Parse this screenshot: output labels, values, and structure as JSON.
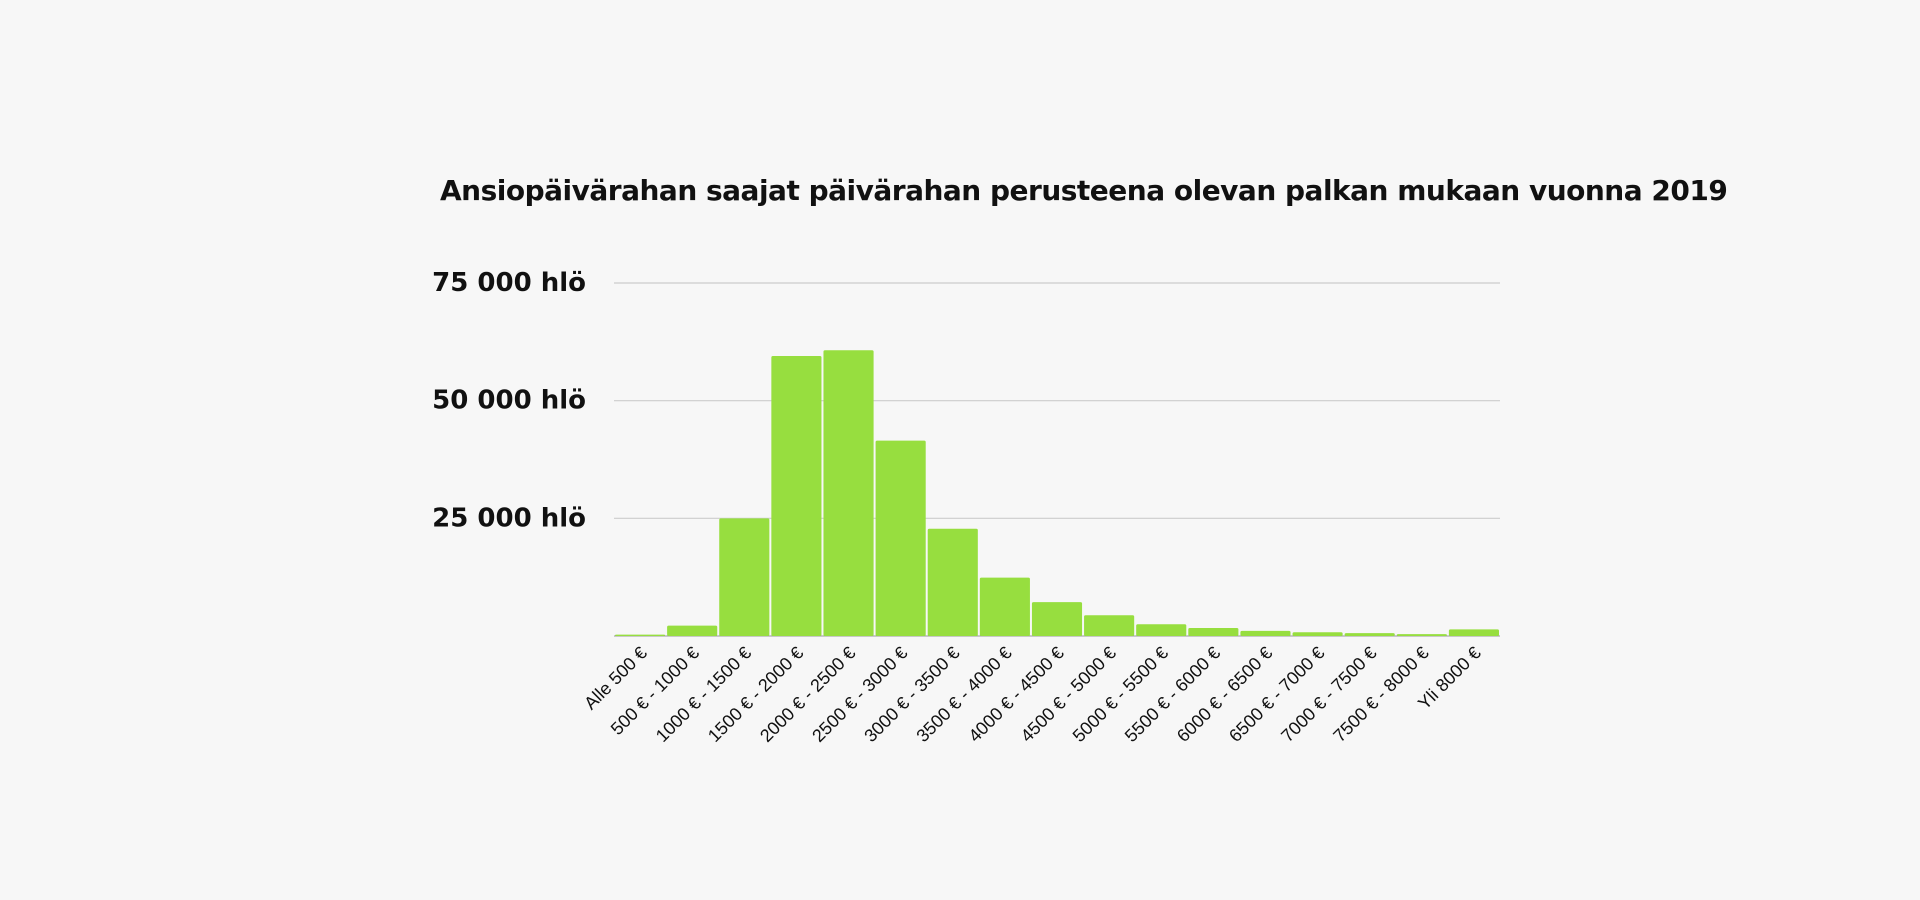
{
  "chart_data": {
    "type": "bar",
    "title": "Ansiopäivärahan saajat päivärahan perusteena olevan palkan mukaan vuonna 2019",
    "xlabel": "",
    "ylabel": "",
    "categories": [
      "Alle 500 €",
      "500 € - 1000 €",
      "1000 € - 1500 €",
      "1500 € - 2000 €",
      "2000 € - 2500 €",
      "2500 € - 3000 €",
      "3000 € - 3500 €",
      "3500 € - 4000 €",
      "4000 € - 4500 €",
      "4500 € - 5000 €",
      "5000 € - 5500 €",
      "5500 € - 6000 €",
      "6000 € - 6500 €",
      "6500 € - 7000 €",
      "7000 € - 7500 €",
      "7500 € - 8000 €",
      "Yli 8000 €"
    ],
    "values": [
      300,
      2200,
      25000,
      59500,
      60700,
      41500,
      22800,
      12400,
      7200,
      4400,
      2500,
      1700,
      1100,
      800,
      600,
      400,
      1400
    ],
    "ylim": [
      0,
      75000
    ],
    "yticks": [
      {
        "value": 25000,
        "label": "25 000 hlö"
      },
      {
        "value": 50000,
        "label": "50 000 hlö"
      },
      {
        "value": 75000,
        "label": "75 000 hlö"
      }
    ],
    "grid": true,
    "legend": "none",
    "colors": {
      "bar": "#97de3f",
      "grid": "#cccccc",
      "baseline": "#999999",
      "background": "#f7f7f7",
      "text": "#111111"
    }
  }
}
